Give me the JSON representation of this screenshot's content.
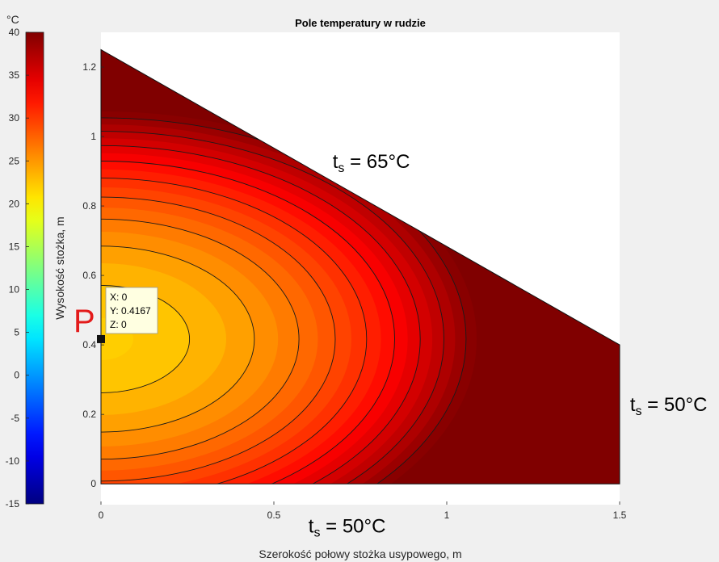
{
  "figure": {
    "background": "#f0f0f0",
    "plot_background": "#ffffff"
  },
  "chart_data": {
    "type": "heatmap",
    "title": "Pole temperatury w rudzie",
    "xlabel": "Szerokość połowy stożka usypowego, m",
    "ylabel": "Wysokość stożka, m",
    "xlim": [
      0,
      1.5
    ],
    "ylim": [
      -0.06,
      1.3
    ],
    "x_ticks": [
      0,
      0.5,
      1,
      1.5
    ],
    "x_tick_labels": [
      "0",
      "0.5",
      "1",
      "1.5"
    ],
    "y_ticks": [
      0,
      0.2,
      0.4,
      0.6,
      0.8,
      1,
      1.2
    ],
    "y_tick_labels": [
      "0",
      "0.2",
      "0.4",
      "0.6",
      "0.8",
      "1",
      "1.2"
    ],
    "grid": false,
    "colormap": "jet",
    "domain_polygon": [
      [
        0,
        0
      ],
      [
        1.5,
        0
      ],
      [
        1.5,
        0.4
      ],
      [
        0,
        1.25
      ]
    ],
    "field_center": {
      "x": 0,
      "y": 0.4167,
      "value": 22
    },
    "colorbar": {
      "label": "°C",
      "min": -15,
      "max": 40,
      "ticks": [
        40,
        35,
        30,
        25,
        20,
        15,
        10,
        5,
        0,
        -5,
        -10,
        -15
      ],
      "tick_labels": [
        "40",
        "35",
        "30",
        "25",
        "20",
        "15",
        "10",
        "5",
        "0",
        "-5",
        "-10",
        "-15"
      ]
    },
    "contour_levels": [
      23,
      25,
      27,
      29,
      31,
      33,
      35,
      37,
      39
    ],
    "datatip": {
      "x": 0,
      "y": 0.4167,
      "lines": [
        "X: 0",
        "Y: 0.4167",
        "Z: 0"
      ]
    },
    "annotations": [
      {
        "sub": "s",
        "text": " = 65°C",
        "x": 0.67,
        "y": 0.91
      },
      {
        "sub": "s",
        "text": " = 50°C",
        "x": 1.53,
        "y": 0.21
      },
      {
        "sub": "s",
        "text": " = 50°C",
        "x": 0.6,
        "y": -0.14
      }
    ],
    "point_label": {
      "text": "P",
      "color": "#e31b1b"
    }
  }
}
